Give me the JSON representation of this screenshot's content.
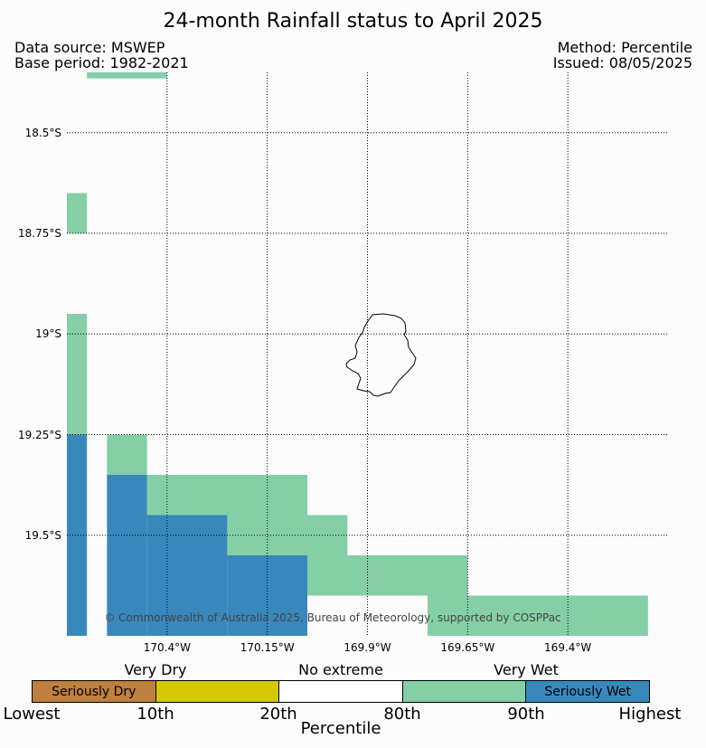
{
  "title": "24-month Rainfall status to April 2025",
  "meta": {
    "source": "Data source: MSWEP",
    "base_period": "Base period: 1982-2021",
    "method": "Method: Percentile",
    "issued": "Issued: 08/05/2025"
  },
  "map": {
    "lat_labels": [
      "18.5°S",
      "18.75°S",
      "19°S",
      "19.25°S",
      "19.5°S"
    ],
    "lon_labels": [
      "170.4°W",
      "170.15°W",
      "169.9°W",
      "169.65°W",
      "169.4°W"
    ],
    "copyright": "© Commonwealth of Australia 2025, Bureau of Meteorology, supported by COSPPac",
    "extent": {
      "lon_min": -170.65,
      "lon_max": -169.15,
      "lat_min": -19.75,
      "lat_max": -18.35
    },
    "cell_size": 0.1,
    "cells": [
      {
        "lon": -170.6,
        "lat": -18.35,
        "w": 2,
        "h": 0.15,
        "cat": "very_wet"
      },
      {
        "lon": -170.65,
        "lat": -18.65,
        "w": 0.5,
        "h": 1,
        "cat": "very_wet"
      },
      {
        "lon": -170.65,
        "lat": -18.95,
        "w": 0.5,
        "h": 3,
        "cat": "very_wet"
      },
      {
        "lon": -170.55,
        "lat": -19.25,
        "w": 1,
        "h": 1,
        "cat": "very_wet"
      },
      {
        "lon": -170.45,
        "lat": -19.35,
        "w": 4,
        "h": 1,
        "cat": "very_wet"
      },
      {
        "lon": -170.25,
        "lat": -19.45,
        "w": 3,
        "h": 1,
        "cat": "very_wet"
      },
      {
        "lon": -170.05,
        "lat": -19.55,
        "w": 4,
        "h": 1,
        "cat": "very_wet"
      },
      {
        "lon": -169.75,
        "lat": -19.65,
        "w": 5.5,
        "h": 1,
        "cat": "very_wet"
      },
      {
        "lon": -170.65,
        "lat": -19.25,
        "w": 0.5,
        "h": 5,
        "cat": "seriously_wet"
      },
      {
        "lon": -170.55,
        "lat": -19.35,
        "w": 1,
        "h": 4,
        "cat": "seriously_wet"
      },
      {
        "lon": -170.45,
        "lat": -19.45,
        "w": 2,
        "h": 3,
        "cat": "seriously_wet"
      },
      {
        "lon": -170.25,
        "lat": -19.55,
        "w": 2,
        "h": 2,
        "cat": "seriously_wet"
      }
    ],
    "island_name_icon": "niue-coastline"
  },
  "legend": {
    "categories": [
      "Very Dry",
      "No extreme",
      "Very Wet"
    ],
    "segments": [
      {
        "label": "Seriously Dry",
        "color": "#bf7f3f"
      },
      {
        "label": "",
        "color": "#d4c900"
      },
      {
        "label": "",
        "color": "#ffffff"
      },
      {
        "label": "",
        "color": "#84cfa6"
      },
      {
        "label": "Seriously Wet",
        "color": "#3888bc"
      }
    ],
    "ticks": [
      "Lowest",
      "10th",
      "20th",
      "80th",
      "90th",
      "Highest"
    ],
    "axis_title": "Percentile"
  },
  "colors": {
    "very_wet": "#84cfa6",
    "seriously_wet": "#3888bc"
  }
}
